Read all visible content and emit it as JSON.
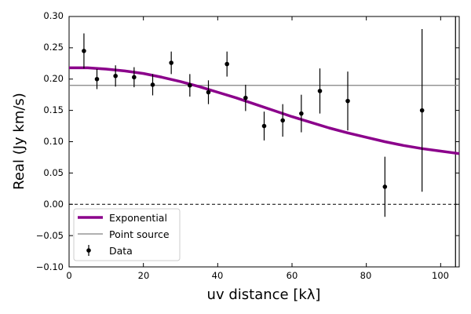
{
  "chart_data": {
    "type": "scatter",
    "xlabel": "uv distance [kλ]",
    "ylabel": "Real (Jy km/s)",
    "xlim": [
      0,
      105
    ],
    "ylim": [
      -0.1,
      0.3
    ],
    "x_ticks": [
      0,
      20,
      40,
      60,
      80,
      100
    ],
    "y_ticks": [
      -0.1,
      -0.05,
      0.0,
      0.05,
      0.1,
      0.15,
      0.2,
      0.25,
      0.3
    ],
    "y_tick_labels": [
      "−0.10",
      "−0.05",
      "0.00",
      "0.05",
      "0.10",
      "0.15",
      "0.20",
      "0.25",
      "0.30"
    ],
    "x_tick_labels": [
      "0",
      "20",
      "40",
      "60",
      "80",
      "100"
    ],
    "legend_position": "lower-left",
    "series": [
      {
        "name": "Exponential",
        "kind": "line",
        "color": "#8B008B",
        "x": [
          0,
          5,
          10,
          15,
          20,
          25,
          30,
          35,
          40,
          45,
          50,
          55,
          60,
          65,
          70,
          75,
          80,
          85,
          90,
          95,
          100,
          105
        ],
        "values": [
          0.218,
          0.218,
          0.216,
          0.213,
          0.209,
          0.203,
          0.196,
          0.188,
          0.179,
          0.17,
          0.16,
          0.15,
          0.14,
          0.131,
          0.122,
          0.114,
          0.107,
          0.1,
          0.094,
          0.089,
          0.085,
          0.081
        ]
      },
      {
        "name": "Point source",
        "kind": "hline",
        "color": "#808080",
        "y": 0.19
      },
      {
        "name": "Data",
        "kind": "errorbar",
        "color": "#000000",
        "x": [
          4,
          7.5,
          12.5,
          17.5,
          22.5,
          27.5,
          32.5,
          37.5,
          42.5,
          47.5,
          52.5,
          57.5,
          62.5,
          67.5,
          75,
          85,
          95
        ],
        "values": [
          0.245,
          0.2,
          0.205,
          0.203,
          0.191,
          0.226,
          0.19,
          0.179,
          0.224,
          0.17,
          0.125,
          0.134,
          0.145,
          0.181,
          0.165,
          0.028,
          0.15
        ],
        "errors": [
          0.028,
          0.016,
          0.017,
          0.016,
          0.017,
          0.018,
          0.018,
          0.019,
          0.02,
          0.021,
          0.023,
          0.026,
          0.03,
          0.036,
          0.047,
          0.048,
          0.13
        ]
      }
    ],
    "reference_lines": [
      {
        "orientation": "horizontal",
        "y": 0.0,
        "style": "dashed",
        "color": "#000000"
      },
      {
        "orientation": "vertical",
        "x": 104,
        "style": "solid",
        "color": "#000000"
      }
    ]
  }
}
